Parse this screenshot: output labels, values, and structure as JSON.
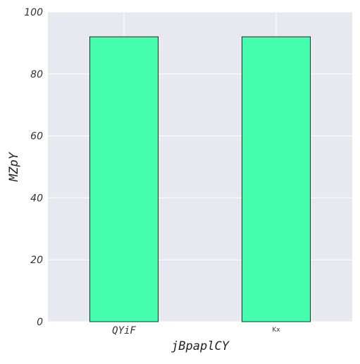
{
  "chart_data": {
    "type": "bar",
    "categories": [
      "QYiF",
      "Kx"
    ],
    "values": [
      92,
      92
    ],
    "xlabel": "jBpaplCY",
    "ylabel": "MZpY",
    "ylim": [
      0,
      100
    ],
    "yticks": [
      0,
      20,
      40,
      60,
      80,
      100
    ],
    "grid": true,
    "legend": "none",
    "colors": {
      "bar_fill": "#46ffae",
      "bar_edge": "#000000",
      "plot_background": "#e8e8f1",
      "grid": "#ffffff"
    }
  }
}
